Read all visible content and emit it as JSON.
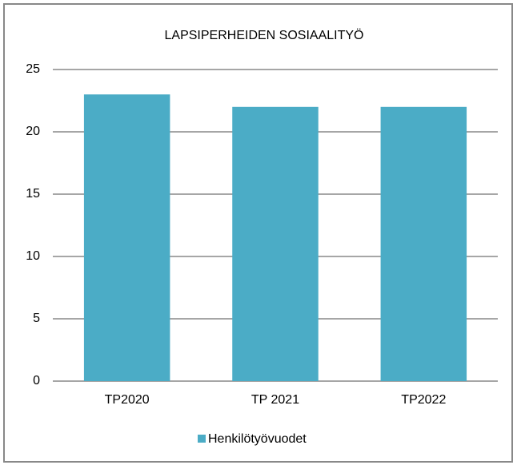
{
  "chart_data": {
    "type": "bar",
    "title": "LAPSIPERHEIDEN SOSIAALITYÖ",
    "categories": [
      "TP2020",
      "TP 2021",
      "TP2022"
    ],
    "series": [
      {
        "name": "Henkilötyövuodet",
        "color": "#4bacc6",
        "values": [
          23,
          22,
          22
        ]
      }
    ],
    "ylim": [
      0,
      25
    ],
    "yticks": [
      0,
      5,
      10,
      15,
      20,
      25
    ],
    "grid": true,
    "legend": "bottom"
  }
}
